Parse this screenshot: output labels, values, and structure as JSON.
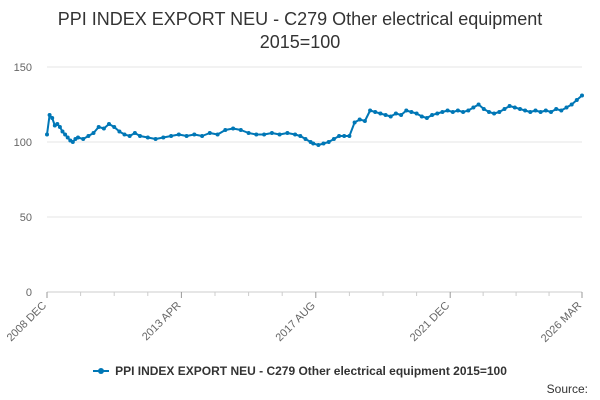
{
  "chart_data": {
    "type": "line",
    "title_lines": [
      "PPI INDEX EXPORT NEU - C279 Other electrical equipment",
      "2015=100"
    ],
    "xlabel": "",
    "ylabel": "",
    "ylim": [
      0,
      150
    ],
    "yticks": [
      0,
      50,
      100,
      150
    ],
    "xticks": [
      {
        "label": "2008 DEC",
        "x": "2008-12"
      },
      {
        "label": "2013 APR",
        "x": "2013-04"
      },
      {
        "label": "2017 AUG",
        "x": "2017-08"
      },
      {
        "label": "2021 DEC",
        "x": "2021-12"
      },
      {
        "label": "2026 MAR",
        "x": "2026-03"
      }
    ],
    "grid": true,
    "legend_placement": "bottom",
    "source_label": "Source:",
    "colors": {
      "series": "#0077b6",
      "grid": "#e6e6e6",
      "axis": "#333333"
    },
    "series": [
      {
        "name": "PPI INDEX EXPORT NEU - C279 Other electrical equipment 2015=100",
        "points": [
          [
            "2008-12",
            105
          ],
          [
            "2009-01",
            118
          ],
          [
            "2009-02",
            116
          ],
          [
            "2009-03",
            111
          ],
          [
            "2009-04",
            112
          ],
          [
            "2009-05",
            110
          ],
          [
            "2009-06",
            107
          ],
          [
            "2009-07",
            105
          ],
          [
            "2009-08",
            103
          ],
          [
            "2009-09",
            101
          ],
          [
            "2009-10",
            100
          ],
          [
            "2009-11",
            102
          ],
          [
            "2009-12",
            103
          ],
          [
            "2010-02",
            102
          ],
          [
            "2010-04",
            104
          ],
          [
            "2010-06",
            106
          ],
          [
            "2010-08",
            110
          ],
          [
            "2010-10",
            109
          ],
          [
            "2010-12",
            112
          ],
          [
            "2011-02",
            110
          ],
          [
            "2011-04",
            107
          ],
          [
            "2011-06",
            105
          ],
          [
            "2011-08",
            104
          ],
          [
            "2011-10",
            106
          ],
          [
            "2011-12",
            104
          ],
          [
            "2012-03",
            103
          ],
          [
            "2012-06",
            102
          ],
          [
            "2012-09",
            103
          ],
          [
            "2012-12",
            104
          ],
          [
            "2013-03",
            105
          ],
          [
            "2013-06",
            104
          ],
          [
            "2013-09",
            105
          ],
          [
            "2013-12",
            104
          ],
          [
            "2014-03",
            106
          ],
          [
            "2014-06",
            105
          ],
          [
            "2014-09",
            108
          ],
          [
            "2014-12",
            109
          ],
          [
            "2015-03",
            108
          ],
          [
            "2015-06",
            106
          ],
          [
            "2015-09",
            105
          ],
          [
            "2015-12",
            105
          ],
          [
            "2016-03",
            106
          ],
          [
            "2016-06",
            105
          ],
          [
            "2016-09",
            106
          ],
          [
            "2016-12",
            105
          ],
          [
            "2017-02",
            104
          ],
          [
            "2017-04",
            102
          ],
          [
            "2017-06",
            100
          ],
          [
            "2017-07",
            99
          ],
          [
            "2017-09",
            98
          ],
          [
            "2017-11",
            99
          ],
          [
            "2018-01",
            100
          ],
          [
            "2018-03",
            102
          ],
          [
            "2018-05",
            104
          ],
          [
            "2018-07",
            104
          ],
          [
            "2018-09",
            104
          ],
          [
            "2018-11",
            113
          ],
          [
            "2019-01",
            115
          ],
          [
            "2019-03",
            114
          ],
          [
            "2019-05",
            121
          ],
          [
            "2019-07",
            120
          ],
          [
            "2019-09",
            119
          ],
          [
            "2019-11",
            118
          ],
          [
            "2020-01",
            117
          ],
          [
            "2020-03",
            119
          ],
          [
            "2020-05",
            118
          ],
          [
            "2020-07",
            121
          ],
          [
            "2020-09",
            120
          ],
          [
            "2020-11",
            119
          ],
          [
            "2021-01",
            117
          ],
          [
            "2021-03",
            116
          ],
          [
            "2021-05",
            118
          ],
          [
            "2021-07",
            119
          ],
          [
            "2021-09",
            120
          ],
          [
            "2021-11",
            121
          ],
          [
            "2022-01",
            120
          ],
          [
            "2022-03",
            121
          ],
          [
            "2022-05",
            120
          ],
          [
            "2022-07",
            121
          ],
          [
            "2022-09",
            123
          ],
          [
            "2022-11",
            125
          ],
          [
            "2023-01",
            122
          ],
          [
            "2023-03",
            120
          ],
          [
            "2023-05",
            119
          ],
          [
            "2023-07",
            120
          ],
          [
            "2023-09",
            122
          ],
          [
            "2023-11",
            124
          ],
          [
            "2024-01",
            123
          ],
          [
            "2024-03",
            122
          ],
          [
            "2024-05",
            121
          ],
          [
            "2024-07",
            120
          ],
          [
            "2024-09",
            121
          ],
          [
            "2024-11",
            120
          ],
          [
            "2025-01",
            121
          ],
          [
            "2025-03",
            120
          ],
          [
            "2025-05",
            122
          ],
          [
            "2025-07",
            121
          ],
          [
            "2025-09",
            123
          ],
          [
            "2025-11",
            125
          ],
          [
            "2026-01",
            128
          ],
          [
            "2026-03",
            131
          ]
        ]
      }
    ]
  }
}
